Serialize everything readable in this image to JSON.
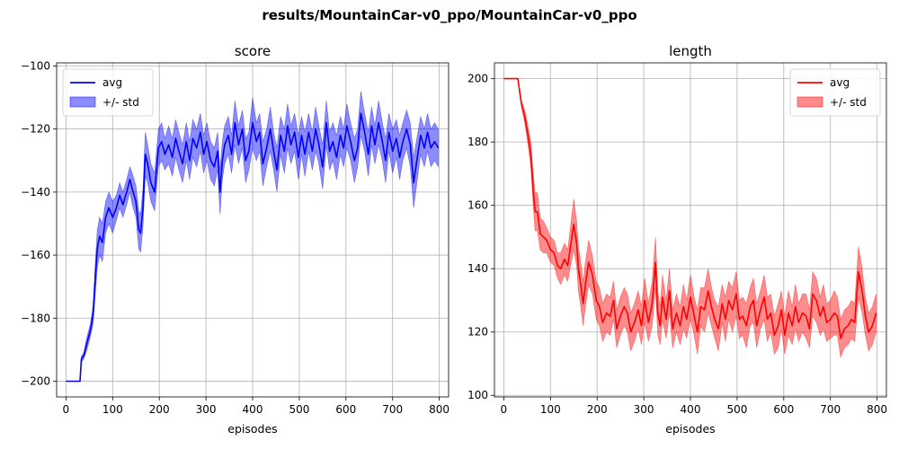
{
  "figure_title": "results/MountainCar-v0_ppo/MountainCar-v0_ppo",
  "chart_data": [
    {
      "type": "line",
      "title": "score",
      "xlabel": "episodes",
      "ylabel": "",
      "xlim": [
        -20,
        820
      ],
      "ylim": [
        -205,
        -99
      ],
      "xticks": [
        0,
        100,
        200,
        300,
        400,
        500,
        600,
        700,
        800
      ],
      "yticks": [
        -200,
        -180,
        -160,
        -140,
        -120,
        -100
      ],
      "grid": true,
      "legend_position": "top-left",
      "legend": [
        "avg",
        "+/- std"
      ],
      "color": "#0000ff",
      "series": [
        {
          "name": "avg",
          "x": [
            0,
            30,
            33,
            38,
            45,
            52,
            58,
            63,
            67,
            72,
            78,
            85,
            92,
            100,
            108,
            115,
            122,
            130,
            137,
            142,
            150,
            156,
            160,
            165,
            170,
            175,
            182,
            190,
            198,
            205,
            212,
            220,
            228,
            235,
            242,
            250,
            258,
            265,
            272,
            280,
            288,
            295,
            302,
            310,
            318,
            325,
            330,
            335,
            340,
            348,
            355,
            362,
            370,
            378,
            385,
            392,
            400,
            408,
            415,
            422,
            430,
            438,
            445,
            452,
            460,
            468,
            475,
            482,
            490,
            498,
            505,
            512,
            520,
            528,
            535,
            542,
            550,
            558,
            565,
            572,
            580,
            588,
            595,
            602,
            610,
            618,
            625,
            632,
            640,
            648,
            655,
            662,
            670,
            678,
            685,
            692,
            700,
            708,
            715,
            722,
            730,
            738,
            745,
            752,
            760,
            768,
            775,
            782,
            790,
            798
          ],
          "y": [
            -200,
            -200,
            -193,
            -192,
            -188,
            -184,
            -179,
            -167,
            -158,
            -154,
            -156,
            -148,
            -145,
            -148,
            -145,
            -141,
            -144,
            -140,
            -136,
            -139,
            -143,
            -152,
            -153,
            -145,
            -128,
            -131,
            -137,
            -140,
            -126,
            -124,
            -128,
            -125,
            -129,
            -123,
            -127,
            -131,
            -124,
            -130,
            -123,
            -126,
            -121,
            -128,
            -124,
            -130,
            -132,
            -127,
            -140,
            -130,
            -125,
            -122,
            -128,
            -118,
            -125,
            -120,
            -130,
            -127,
            -118,
            -124,
            -121,
            -131,
            -126,
            -120,
            -127,
            -133,
            -122,
            -127,
            -119,
            -125,
            -121,
            -129,
            -122,
            -128,
            -121,
            -127,
            -120,
            -125,
            -132,
            -118,
            -127,
            -124,
            -129,
            -122,
            -126,
            -119,
            -124,
            -130,
            -126,
            -115,
            -121,
            -128,
            -119,
            -125,
            -118,
            -124,
            -130,
            -121,
            -127,
            -123,
            -129,
            -124,
            -120,
            -125,
            -137,
            -130,
            -122,
            -126,
            -121,
            -126,
            -124,
            -126
          ]
        },
        {
          "name": "+/- std",
          "std": [
            0,
            0,
            1,
            1,
            2,
            2,
            3,
            5,
            6,
            6,
            6,
            5,
            5,
            5,
            4,
            4,
            4,
            4,
            4,
            5,
            5,
            6,
            6,
            6,
            7,
            6,
            6,
            6,
            6,
            6,
            5,
            6,
            6,
            6,
            6,
            6,
            6,
            6,
            6,
            6,
            6,
            6,
            6,
            6,
            6,
            6,
            7,
            6,
            6,
            6,
            6,
            7,
            6,
            6,
            7,
            6,
            8,
            6,
            6,
            7,
            6,
            7,
            6,
            7,
            6,
            7,
            7,
            6,
            6,
            7,
            6,
            7,
            6,
            6,
            7,
            6,
            7,
            7,
            6,
            6,
            7,
            6,
            6,
            7,
            6,
            7,
            6,
            7,
            6,
            7,
            6,
            6,
            7,
            6,
            7,
            6,
            7,
            6,
            7,
            6,
            6,
            7,
            8,
            7,
            6,
            6,
            6,
            6,
            6,
            6
          ]
        }
      ]
    },
    {
      "type": "line",
      "title": "length",
      "xlabel": "episodes",
      "ylabel": "",
      "xlim": [
        -20,
        820
      ],
      "ylim": [
        99.5,
        205
      ],
      "xticks": [
        0,
        100,
        200,
        300,
        400,
        500,
        600,
        700,
        800
      ],
      "yticks": [
        100,
        120,
        140,
        160,
        180,
        200
      ],
      "grid": true,
      "legend_position": "top-right",
      "legend": [
        "avg",
        "+/- std"
      ],
      "color": "#ff0000",
      "series": [
        {
          "name": "avg",
          "x": [
            0,
            30,
            33,
            38,
            45,
            52,
            58,
            63,
            67,
            72,
            78,
            85,
            92,
            100,
            108,
            115,
            122,
            130,
            137,
            142,
            150,
            156,
            160,
            165,
            170,
            175,
            182,
            190,
            198,
            205,
            212,
            220,
            228,
            235,
            242,
            250,
            258,
            265,
            272,
            280,
            288,
            295,
            302,
            310,
            318,
            325,
            330,
            335,
            340,
            348,
            355,
            362,
            370,
            378,
            385,
            392,
            400,
            408,
            415,
            422,
            430,
            438,
            445,
            452,
            460,
            468,
            475,
            482,
            490,
            498,
            505,
            512,
            520,
            528,
            535,
            542,
            550,
            558,
            565,
            572,
            580,
            588,
            595,
            602,
            610,
            618,
            625,
            632,
            640,
            648,
            655,
            662,
            670,
            678,
            685,
            692,
            700,
            708,
            715,
            722,
            730,
            738,
            745,
            752,
            760,
            768,
            775,
            782,
            790,
            798
          ],
          "y": [
            200,
            200,
            197,
            192,
            188,
            182,
            176,
            165,
            158,
            158,
            151,
            150,
            149,
            146,
            145,
            141,
            140,
            143,
            141,
            146,
            154,
            148,
            140,
            135,
            129,
            135,
            142,
            138,
            130,
            128,
            123,
            126,
            125,
            130,
            121,
            125,
            128,
            126,
            120,
            123,
            127,
            122,
            130,
            123,
            129,
            142,
            126,
            122,
            131,
            124,
            133,
            121,
            126,
            122,
            128,
            124,
            131,
            125,
            120,
            128,
            127,
            133,
            128,
            124,
            121,
            129,
            124,
            130,
            127,
            132,
            124,
            125,
            122,
            128,
            130,
            122,
            127,
            131,
            124,
            126,
            119,
            122,
            127,
            119,
            126,
            122,
            128,
            123,
            126,
            125,
            121,
            132,
            130,
            125,
            128,
            123,
            124,
            126,
            125,
            118,
            121,
            122,
            124,
            123,
            139,
            133,
            125,
            120,
            122,
            126
          ]
        },
        {
          "name": "+/- std",
          "std": [
            0,
            0,
            1,
            1,
            2,
            3,
            4,
            5,
            6,
            6,
            5,
            5,
            4,
            4,
            4,
            4,
            5,
            5,
            5,
            6,
            8,
            7,
            7,
            7,
            7,
            7,
            7,
            6,
            6,
            6,
            6,
            6,
            6,
            6,
            6,
            6,
            6,
            6,
            6,
            6,
            6,
            6,
            7,
            6,
            7,
            8,
            7,
            6,
            7,
            6,
            7,
            6,
            6,
            6,
            7,
            6,
            7,
            6,
            7,
            6,
            7,
            7,
            6,
            6,
            7,
            6,
            7,
            6,
            7,
            7,
            6,
            6,
            7,
            6,
            7,
            7,
            6,
            7,
            7,
            6,
            6,
            7,
            6,
            6,
            7,
            6,
            7,
            6,
            6,
            7,
            6,
            7,
            7,
            6,
            7,
            6,
            6,
            7,
            6,
            6,
            6,
            6,
            6,
            6,
            8,
            7,
            6,
            6,
            6,
            6
          ]
        }
      ]
    }
  ]
}
